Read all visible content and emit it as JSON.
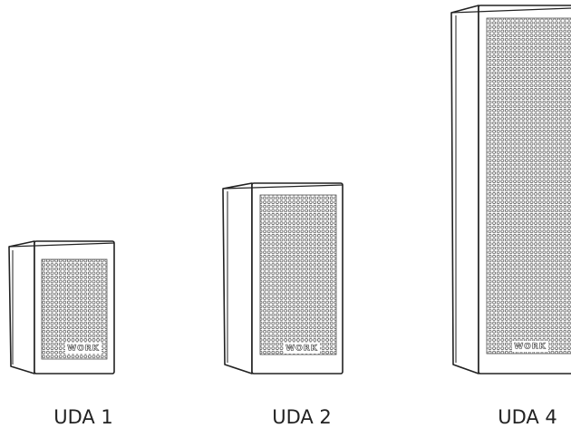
{
  "products": [
    {
      "label": "UDA 1",
      "brand": "WORK"
    },
    {
      "label": "UDA 2",
      "brand": "WORK"
    },
    {
      "label": "UDA 4",
      "brand": "WORK"
    }
  ]
}
